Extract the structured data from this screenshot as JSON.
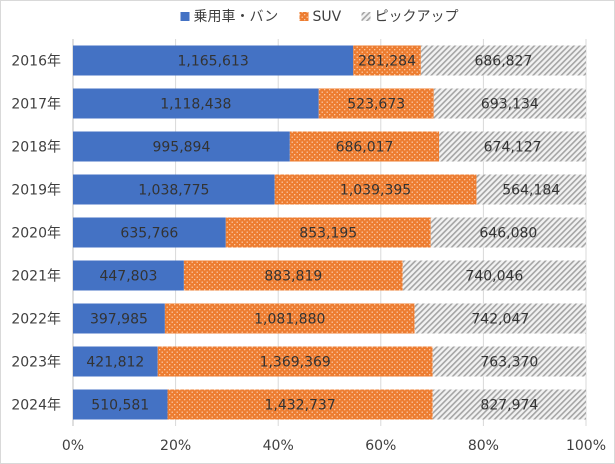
{
  "chart_data": {
    "type": "bar",
    "orientation": "horizontal",
    "stacked": "percent",
    "categories": [
      "2016年",
      "2017年",
      "2018年",
      "2019年",
      "2020年",
      "2021年",
      "2022年",
      "2023年",
      "2024年"
    ],
    "series": [
      {
        "name": "乗用車・バン",
        "color": "#4472c4",
        "pattern": "solid",
        "values": [
          1165613,
          1118438,
          995894,
          1038775,
          635766,
          447803,
          397985,
          421812,
          510581
        ],
        "labels": [
          "1,165,613",
          "1,118,438",
          "995,894",
          "1,038,775",
          "635,766",
          "447,803",
          "397,985",
          "421,812",
          "510,581"
        ]
      },
      {
        "name": "SUV",
        "color": "#ed7d31",
        "pattern": "dots",
        "values": [
          281284,
          523673,
          686017,
          1039395,
          853195,
          883819,
          1081880,
          1369369,
          1432737
        ],
        "labels": [
          "281,284",
          "523,673",
          "686,017",
          "1,039,395",
          "853,195",
          "883,819",
          "1,081,880",
          "1,369,369",
          "1,432,737"
        ]
      },
      {
        "name": "ピックアップ",
        "color": "#a5a5a5",
        "pattern": "diagonal-hatch",
        "values": [
          686827,
          693134,
          674127,
          564184,
          646080,
          740046,
          742047,
          763370,
          827974
        ],
        "labels": [
          "686,827",
          "693,134",
          "674,127",
          "564,184",
          "646,080",
          "740,046",
          "742,047",
          "763,370",
          "827,974"
        ]
      }
    ],
    "x_ticks": [
      "0%",
      "20%",
      "40%",
      "60%",
      "80%",
      "100%"
    ],
    "xlim": [
      0,
      100
    ],
    "grid": "vertical",
    "legend": "top"
  }
}
